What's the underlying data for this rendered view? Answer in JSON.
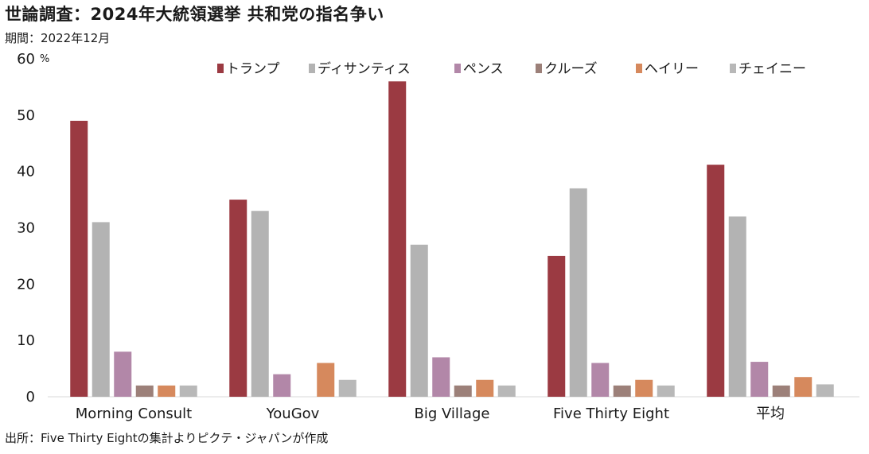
{
  "header": {
    "title": "世論調査：2024年大統領選挙 共和党の指名争い",
    "period": "期間：2022年12月"
  },
  "footer": {
    "source": "出所：Five Thirty Eightの集計よりピクテ・ジャパンが作成"
  },
  "chart_data": {
    "type": "bar",
    "title": "世論調査：2024年大統領選挙 共和党の指名争い",
    "ylabel": "%",
    "ylim": [
      0,
      60
    ],
    "yticks": [
      "0",
      "10",
      "20",
      "30",
      "40",
      "50",
      "60"
    ],
    "grid": false,
    "legend_position": "top",
    "categories": [
      "Morning Consult",
      "YouGov",
      "Big Village",
      "Five Thirty Eight",
      "平均"
    ],
    "series": [
      {
        "name": "トランプ",
        "color": "#9b3a42",
        "values": [
          49,
          35,
          56,
          25,
          41.2
        ]
      },
      {
        "name": "ディサンティス",
        "color": "#b3b3b3",
        "values": [
          31,
          33,
          27,
          37,
          32
        ]
      },
      {
        "name": "ペンス",
        "color": "#b287a8",
        "values": [
          8,
          4,
          7,
          6,
          6.2
        ]
      },
      {
        "name": "クルーズ",
        "color": "#9c8079",
        "values": [
          2,
          0,
          2,
          2,
          2
        ]
      },
      {
        "name": "ヘイリー",
        "color": "#d6895d",
        "values": [
          2,
          6,
          3,
          3,
          3.5
        ]
      },
      {
        "name": "チェイニー",
        "color": "#b8b8b8",
        "values": [
          2,
          3,
          2,
          2,
          2.2
        ]
      }
    ]
  }
}
